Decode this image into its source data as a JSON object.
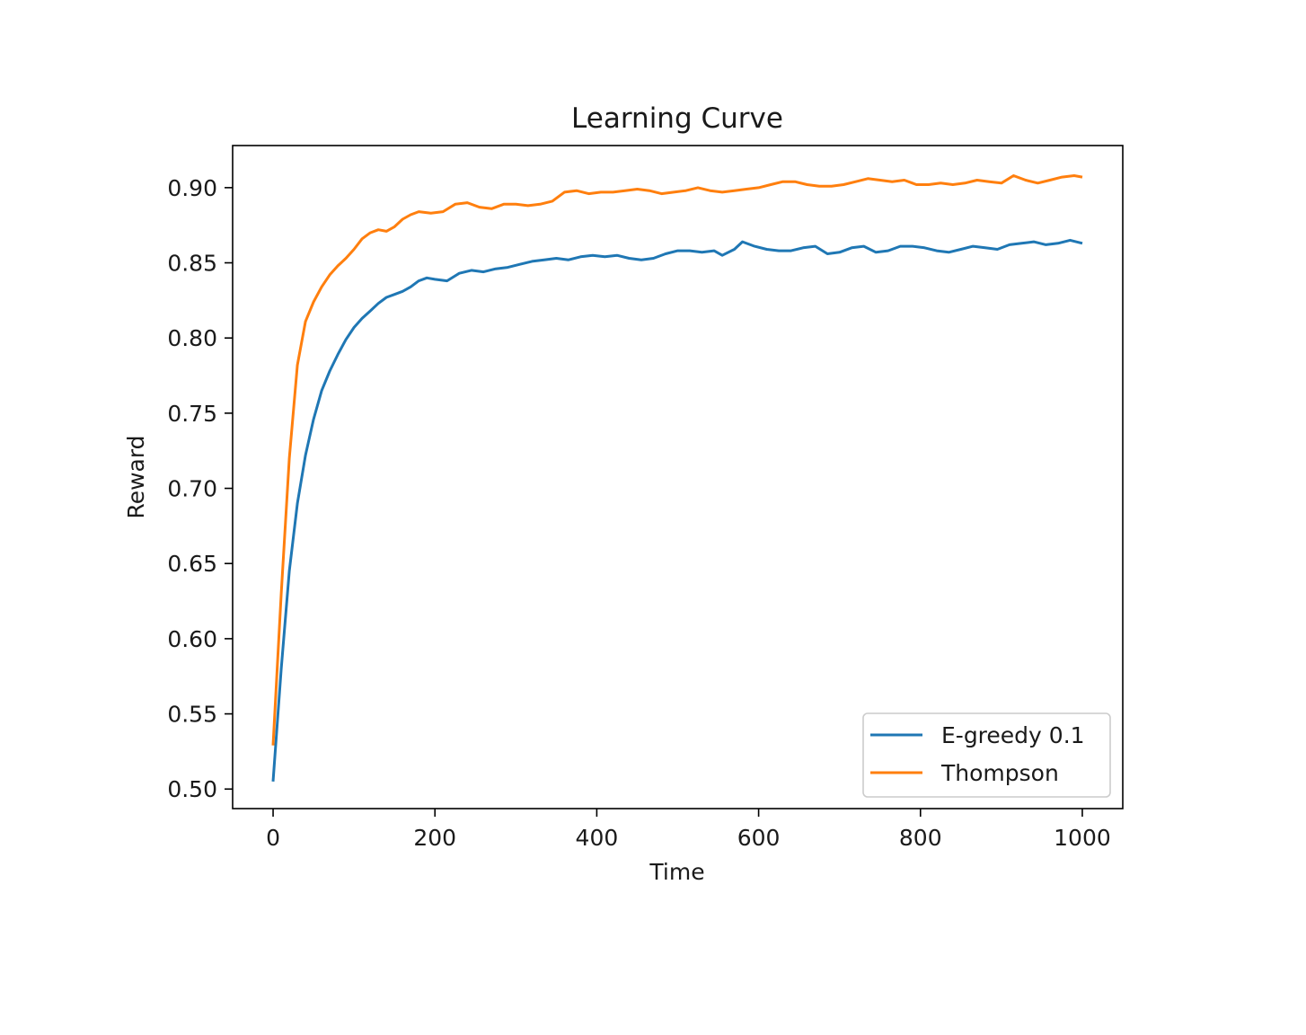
{
  "chart_data": {
    "type": "line",
    "title": "Learning Curve",
    "xlabel": "Time",
    "ylabel": "Reward",
    "xlim": [
      -50,
      1050
    ],
    "ylim": [
      0.487,
      0.928
    ],
    "xticks": [
      0,
      200,
      400,
      600,
      800,
      1000
    ],
    "yticks": [
      0.5,
      0.55,
      0.6,
      0.65,
      0.7,
      0.75,
      0.8,
      0.85,
      0.9
    ],
    "grid": false,
    "legend_position": "lower-right",
    "series": [
      {
        "name": "E-greedy 0.1",
        "color": "#1f77b4",
        "points": [
          [
            0,
            0.505
          ],
          [
            10,
            0.58
          ],
          [
            20,
            0.645
          ],
          [
            30,
            0.69
          ],
          [
            40,
            0.722
          ],
          [
            50,
            0.746
          ],
          [
            60,
            0.765
          ],
          [
            70,
            0.778
          ],
          [
            80,
            0.789
          ],
          [
            90,
            0.799
          ],
          [
            100,
            0.807
          ],
          [
            110,
            0.813
          ],
          [
            120,
            0.818
          ],
          [
            130,
            0.823
          ],
          [
            140,
            0.827
          ],
          [
            150,
            0.829
          ],
          [
            160,
            0.831
          ],
          [
            170,
            0.834
          ],
          [
            180,
            0.838
          ],
          [
            190,
            0.84
          ],
          [
            200,
            0.839
          ],
          [
            215,
            0.838
          ],
          [
            230,
            0.843
          ],
          [
            245,
            0.845
          ],
          [
            260,
            0.844
          ],
          [
            275,
            0.846
          ],
          [
            290,
            0.847
          ],
          [
            305,
            0.849
          ],
          [
            320,
            0.851
          ],
          [
            335,
            0.852
          ],
          [
            350,
            0.853
          ],
          [
            365,
            0.852
          ],
          [
            380,
            0.854
          ],
          [
            395,
            0.855
          ],
          [
            410,
            0.854
          ],
          [
            425,
            0.855
          ],
          [
            440,
            0.853
          ],
          [
            455,
            0.852
          ],
          [
            470,
            0.853
          ],
          [
            485,
            0.856
          ],
          [
            500,
            0.858
          ],
          [
            515,
            0.858
          ],
          [
            530,
            0.857
          ],
          [
            545,
            0.858
          ],
          [
            555,
            0.855
          ],
          [
            570,
            0.859
          ],
          [
            580,
            0.864
          ],
          [
            595,
            0.861
          ],
          [
            610,
            0.859
          ],
          [
            625,
            0.858
          ],
          [
            640,
            0.858
          ],
          [
            655,
            0.86
          ],
          [
            670,
            0.861
          ],
          [
            685,
            0.856
          ],
          [
            700,
            0.857
          ],
          [
            715,
            0.86
          ],
          [
            730,
            0.861
          ],
          [
            745,
            0.857
          ],
          [
            760,
            0.858
          ],
          [
            775,
            0.861
          ],
          [
            790,
            0.861
          ],
          [
            805,
            0.86
          ],
          [
            820,
            0.858
          ],
          [
            835,
            0.857
          ],
          [
            850,
            0.859
          ],
          [
            865,
            0.861
          ],
          [
            880,
            0.86
          ],
          [
            895,
            0.859
          ],
          [
            910,
            0.862
          ],
          [
            925,
            0.863
          ],
          [
            940,
            0.864
          ],
          [
            955,
            0.862
          ],
          [
            970,
            0.863
          ],
          [
            985,
            0.865
          ],
          [
            1000,
            0.863
          ]
        ]
      },
      {
        "name": "Thompson",
        "color": "#ff7f0e",
        "points": [
          [
            0,
            0.529
          ],
          [
            10,
            0.63
          ],
          [
            20,
            0.72
          ],
          [
            30,
            0.782
          ],
          [
            40,
            0.811
          ],
          [
            50,
            0.824
          ],
          [
            60,
            0.834
          ],
          [
            70,
            0.842
          ],
          [
            80,
            0.848
          ],
          [
            90,
            0.853
          ],
          [
            100,
            0.859
          ],
          [
            110,
            0.866
          ],
          [
            120,
            0.87
          ],
          [
            130,
            0.872
          ],
          [
            140,
            0.871
          ],
          [
            150,
            0.874
          ],
          [
            160,
            0.879
          ],
          [
            170,
            0.882
          ],
          [
            180,
            0.884
          ],
          [
            195,
            0.883
          ],
          [
            210,
            0.884
          ],
          [
            225,
            0.889
          ],
          [
            240,
            0.89
          ],
          [
            255,
            0.887
          ],
          [
            270,
            0.886
          ],
          [
            285,
            0.889
          ],
          [
            300,
            0.889
          ],
          [
            315,
            0.888
          ],
          [
            330,
            0.889
          ],
          [
            345,
            0.891
          ],
          [
            360,
            0.897
          ],
          [
            375,
            0.898
          ],
          [
            390,
            0.896
          ],
          [
            405,
            0.897
          ],
          [
            420,
            0.897
          ],
          [
            435,
            0.898
          ],
          [
            450,
            0.899
          ],
          [
            465,
            0.898
          ],
          [
            480,
            0.896
          ],
          [
            495,
            0.897
          ],
          [
            510,
            0.898
          ],
          [
            525,
            0.9
          ],
          [
            540,
            0.898
          ],
          [
            555,
            0.897
          ],
          [
            570,
            0.898
          ],
          [
            585,
            0.899
          ],
          [
            600,
            0.9
          ],
          [
            615,
            0.902
          ],
          [
            630,
            0.904
          ],
          [
            645,
            0.904
          ],
          [
            660,
            0.902
          ],
          [
            675,
            0.901
          ],
          [
            690,
            0.901
          ],
          [
            705,
            0.902
          ],
          [
            720,
            0.904
          ],
          [
            735,
            0.906
          ],
          [
            750,
            0.905
          ],
          [
            765,
            0.904
          ],
          [
            780,
            0.905
          ],
          [
            795,
            0.902
          ],
          [
            810,
            0.902
          ],
          [
            825,
            0.903
          ],
          [
            840,
            0.902
          ],
          [
            855,
            0.903
          ],
          [
            870,
            0.905
          ],
          [
            885,
            0.904
          ],
          [
            900,
            0.903
          ],
          [
            915,
            0.908
          ],
          [
            930,
            0.905
          ],
          [
            945,
            0.903
          ],
          [
            960,
            0.905
          ],
          [
            975,
            0.907
          ],
          [
            990,
            0.908
          ],
          [
            1000,
            0.907
          ]
        ]
      }
    ]
  }
}
